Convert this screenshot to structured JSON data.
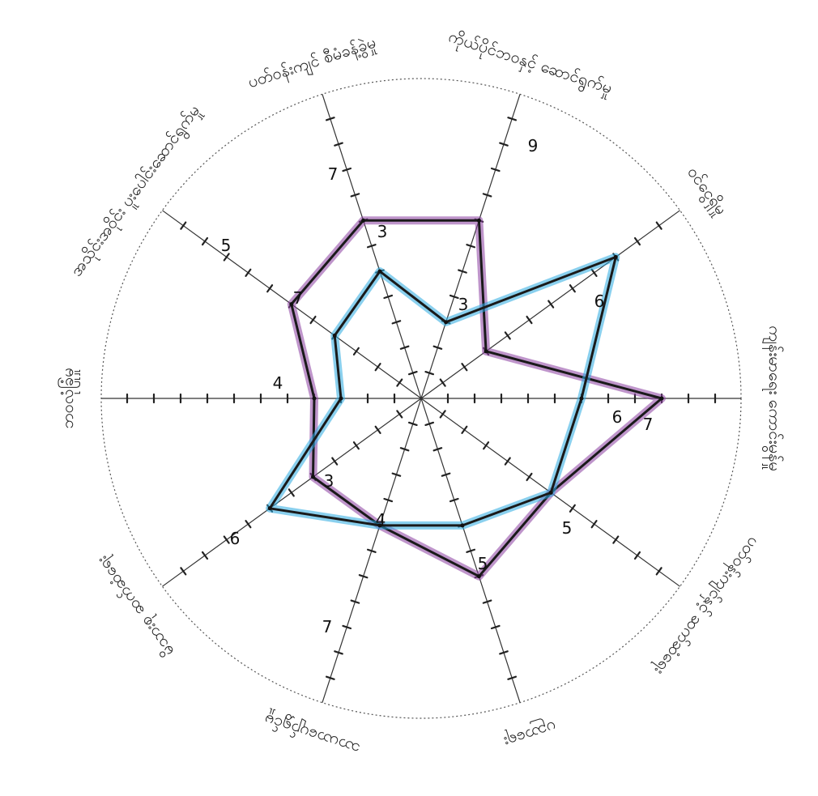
{
  "chart_data": {
    "type": "radar",
    "title": "",
    "max": 10,
    "grid": true,
    "categories": [
      "ကိုယ်ပိုင်ဘဝနှင့် ဆောင်ရွက်မှု",
      "ဝင်ငွေရှိမှု",
      "ကျန်းမာရေး ကောင်းမွန်မှု",
      "ပတ်ဝန်းကျင်နှင့် ဆက်ဆံရေး",
      "ပညာရေး",
      "သာယာပျော်ရွှင်မှု",
      "မိသားစု ဆက်ဆံရေး",
      "ဘဝလုံခြုံမှု",
      "အသိုင်းအဝိုင်း ပူးပေါင်းဆောင်ရွက်မှု",
      "ပတ်ဝန်းကျင် စီမံခန့်ခွဲမှု"
    ],
    "series": [
      {
        "values": [
          7,
          3,
          9,
          6,
          7,
          5,
          5,
          4,
          6,
          7
        ],
        "color": "#8a3ea0"
      },
      {
        "values": [
          3,
          9,
          6,
          6,
          5,
          5,
          7,
          3,
          4,
          5
        ],
        "color": "#2aa9e0"
      }
    ],
    "value_labels": [
      "7",
      "3",
      "9",
      "6",
      "6",
      "7",
      "5",
      "5",
      "4",
      "7",
      "3",
      "6",
      "4",
      "7",
      "5",
      "3"
    ]
  }
}
